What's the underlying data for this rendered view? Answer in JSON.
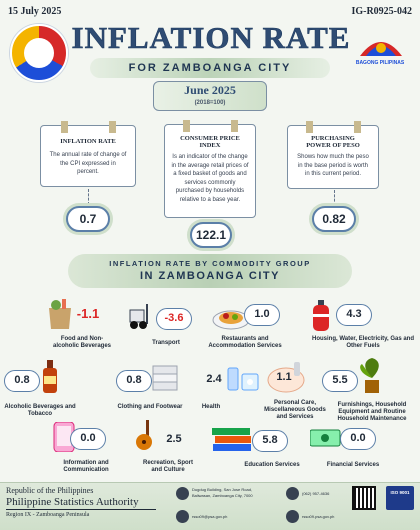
{
  "header": {
    "date": "15 July 2025",
    "id": "IG-R0925-042",
    "title": "INFLATION RATE",
    "subtitle": "FOR ZAMBOANGA CITY",
    "period": "June 2025",
    "base": "(2018=100)",
    "bp_text": "BAGONG PILIPINAS"
  },
  "cards": [
    {
      "title": "INFLATION RATE",
      "desc": "The annual rate of change of the CPI expressed in percent.",
      "value": "0.7"
    },
    {
      "title": "CONSUMER PRICE INDEX",
      "desc": "Is an indicator of the change in the average retail prices of a fixed basket of goods and services commonly purchased by households relative to a base year.",
      "value": "122.1"
    },
    {
      "title": "PURCHASING POWER OF PESO",
      "desc": "Shows how much the peso in the base period is worth in this current period.",
      "value": "0.82"
    }
  ],
  "group": {
    "line1": "INFLATION RATE BY COMMODITY GROUP",
    "line2": "IN ZAMBOANGA CITY"
  },
  "commodities": [
    {
      "label": "Food and Non-alcoholic Beverages",
      "value": "-1.1",
      "negative": true,
      "icon": "grocery-bag-icon"
    },
    {
      "label": "Transport",
      "value": "-3.6",
      "negative": true,
      "icon": "forklift-icon"
    },
    {
      "label": "Restaurants and Accommodation Services",
      "value": "1.0",
      "negative": false,
      "icon": "food-plate-icon"
    },
    {
      "label": "Housing, Water, Electricity, Gas and Other Fuels",
      "value": "4.3",
      "negative": false,
      "icon": "gas-tank-icon"
    },
    {
      "label": "Alcoholic Beverages and Tobacco",
      "value": "0.8",
      "negative": false,
      "icon": "liquor-bottle-icon"
    },
    {
      "label": "Clothing and Footwear",
      "value": "0.8",
      "negative": false,
      "icon": "folded-clothes-icon"
    },
    {
      "label": "Health",
      "value": "2.4",
      "negative": false,
      "icon": "medicine-icon"
    },
    {
      "label": "Personal Care, Miscellaneous Goods and Services",
      "value": "1.1",
      "negative": false,
      "icon": "personal-care-icon"
    },
    {
      "label": "Furnishings, Household Equipment and Routine Household Maintenance",
      "value": "5.5",
      "negative": false,
      "icon": "houseplant-icon"
    },
    {
      "label": "Information and Communication",
      "value": "0.0",
      "negative": false,
      "icon": "smartphone-icon"
    },
    {
      "label": "Recreation, Sport and Culture",
      "value": "2.5",
      "negative": false,
      "icon": "guitar-icon"
    },
    {
      "label": "Education Services",
      "value": "5.8",
      "negative": false,
      "icon": "books-icon"
    },
    {
      "label": "Financial Services",
      "value": "0.0",
      "negative": false,
      "icon": "money-icon"
    }
  ],
  "footer": {
    "republic": "Republic of the Philippines",
    "agency": "Philippine Statistics Authority",
    "region": "Region IX - Zamboanga Peninsula",
    "address1": "Dugdug Building, San Jose Road,",
    "address2": "Baliwasan, Zamboanga City, 7000",
    "phone": "(062) 957-4636",
    "email": "rsso09@psa.gov.ph",
    "web": "rsso09.psa.gov.ph"
  },
  "colors": {
    "accent": "#2f4c73",
    "negative": "#dc2626",
    "banner": "#bcd3b8"
  }
}
